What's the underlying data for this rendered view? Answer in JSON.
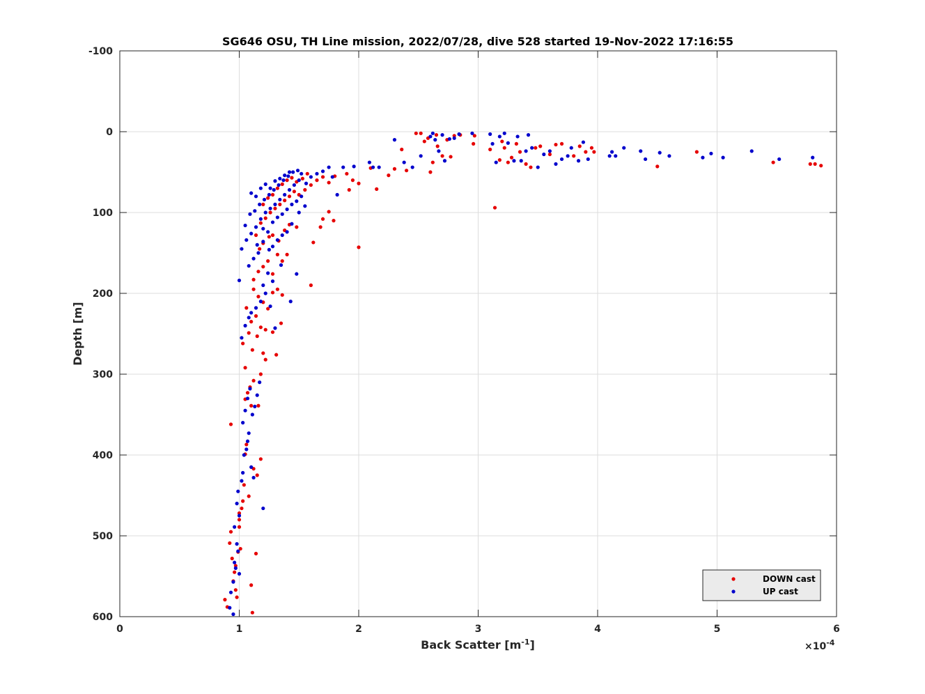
{
  "chart_data": {
    "type": "scatter",
    "title": "SG646 OSU, TH Line mission, 2022/07/28, dive 528 started 19-Nov-2022 17:16:55",
    "xlabel": "Back Scatter [m",
    "xlabel_sup": "-1",
    "xlabel_end": "]",
    "ylabel": "Depth [m]",
    "x_multiplier_label": "×10",
    "x_multiplier_exp": "-4",
    "xlim": [
      0,
      6
    ],
    "ylim": [
      -100,
      600
    ],
    "y_reversed": true,
    "xticks": [
      "0",
      "1",
      "2",
      "3",
      "4",
      "5",
      "6"
    ],
    "yticks": [
      "-100",
      "0",
      "100",
      "200",
      "300",
      "400",
      "500",
      "600"
    ],
    "grid": true,
    "legend_position": "bottom-right",
    "series": [
      {
        "name": "DOWN cast",
        "color": "#e60000",
        "points": [
          [
            0.88,
            579
          ],
          [
            0.9,
            588
          ],
          [
            0.92,
            509
          ],
          [
            0.93,
            495
          ],
          [
            0.94,
            528
          ],
          [
            0.95,
            556
          ],
          [
            0.96,
            545
          ],
          [
            0.97,
            537
          ],
          [
            0.97,
            567
          ],
          [
            0.98,
            576
          ],
          [
            0.99,
            520
          ],
          [
            1.0,
            489
          ],
          [
            1.0,
            472
          ],
          [
            1.0,
            480
          ],
          [
            1.01,
            516
          ],
          [
            1.02,
            466
          ],
          [
            1.03,
            457
          ],
          [
            1.04,
            437
          ],
          [
            1.05,
            399
          ],
          [
            1.06,
            387
          ],
          [
            1.08,
            451
          ],
          [
            1.1,
            561
          ],
          [
            1.11,
            595
          ],
          [
            1.14,
            522
          ],
          [
            1.12,
            417
          ],
          [
            1.15,
            425
          ],
          [
            1.18,
            405
          ],
          [
            0.93,
            362
          ],
          [
            1.05,
            331
          ],
          [
            1.07,
            323
          ],
          [
            1.09,
            316
          ],
          [
            1.1,
            339
          ],
          [
            1.12,
            308
          ],
          [
            1.16,
            339
          ],
          [
            1.18,
            300
          ],
          [
            1.05,
            292
          ],
          [
            1.08,
            249
          ],
          [
            1.11,
            270
          ],
          [
            1.15,
            253
          ],
          [
            1.2,
            274
          ],
          [
            1.22,
            282
          ],
          [
            1.03,
            262
          ],
          [
            1.06,
            218
          ],
          [
            1.1,
            235
          ],
          [
            1.14,
            228
          ],
          [
            1.18,
            242
          ],
          [
            1.22,
            245
          ],
          [
            1.28,
            248
          ],
          [
            1.31,
            276
          ],
          [
            1.35,
            237
          ],
          [
            1.12,
            195
          ],
          [
            1.16,
            204
          ],
          [
            1.2,
            211
          ],
          [
            1.24,
            219
          ],
          [
            1.28,
            199
          ],
          [
            1.32,
            195
          ],
          [
            1.36,
            202
          ],
          [
            1.12,
            183
          ],
          [
            1.16,
            173
          ],
          [
            1.2,
            167
          ],
          [
            1.24,
            160
          ],
          [
            1.28,
            176
          ],
          [
            1.32,
            152
          ],
          [
            1.36,
            160
          ],
          [
            1.4,
            152
          ],
          [
            1.6,
            190
          ],
          [
            1.17,
            145
          ],
          [
            1.2,
            138
          ],
          [
            1.25,
            130
          ],
          [
            1.28,
            128
          ],
          [
            1.33,
            135
          ],
          [
            1.38,
            122
          ],
          [
            1.42,
            115
          ],
          [
            1.48,
            118
          ],
          [
            1.14,
            128
          ],
          [
            1.18,
            113
          ],
          [
            1.22,
            107
          ],
          [
            1.26,
            100
          ],
          [
            1.3,
            95
          ],
          [
            1.34,
            90
          ],
          [
            1.38,
            85
          ],
          [
            1.42,
            80
          ],
          [
            1.46,
            74
          ],
          [
            1.5,
            78
          ],
          [
            1.55,
            72
          ],
          [
            1.6,
            66
          ],
          [
            1.65,
            60
          ],
          [
            1.7,
            56
          ],
          [
            1.75,
            63
          ],
          [
            1.8,
            55
          ],
          [
            1.2,
            90
          ],
          [
            1.24,
            82
          ],
          [
            1.28,
            78
          ],
          [
            1.32,
            70
          ],
          [
            1.36,
            65
          ],
          [
            1.4,
            60
          ],
          [
            1.44,
            57
          ],
          [
            1.48,
            62
          ],
          [
            1.53,
            58
          ],
          [
            1.57,
            52
          ],
          [
            1.7,
            108
          ],
          [
            1.75,
            99
          ],
          [
            1.79,
            110
          ],
          [
            1.68,
            118
          ],
          [
            1.62,
            137
          ],
          [
            1.92,
            72
          ],
          [
            1.95,
            60
          ],
          [
            2.0,
            64
          ],
          [
            1.9,
            52
          ],
          [
            2.0,
            143
          ],
          [
            2.1,
            45
          ],
          [
            2.15,
            71
          ],
          [
            2.25,
            54
          ],
          [
            2.3,
            46
          ],
          [
            2.36,
            22
          ],
          [
            2.4,
            48
          ],
          [
            2.48,
            2
          ],
          [
            2.52,
            2
          ],
          [
            2.55,
            12
          ],
          [
            2.58,
            8
          ],
          [
            2.6,
            50
          ],
          [
            2.62,
            38
          ],
          [
            2.65,
            4
          ],
          [
            2.66,
            18
          ],
          [
            2.7,
            30
          ],
          [
            2.74,
            10
          ],
          [
            2.77,
            31
          ],
          [
            2.8,
            5
          ],
          [
            2.85,
            4
          ],
          [
            2.96,
            15
          ],
          [
            2.97,
            5
          ],
          [
            3.1,
            22
          ],
          [
            3.14,
            94
          ],
          [
            3.18,
            35
          ],
          [
            3.2,
            12
          ],
          [
            3.22,
            20
          ],
          [
            3.25,
            38
          ],
          [
            3.28,
            32
          ],
          [
            3.32,
            15
          ],
          [
            3.35,
            25
          ],
          [
            3.4,
            40
          ],
          [
            3.44,
            44
          ],
          [
            3.48,
            20
          ],
          [
            3.52,
            18
          ],
          [
            3.6,
            28
          ],
          [
            3.65,
            16
          ],
          [
            3.7,
            15
          ],
          [
            3.8,
            30
          ],
          [
            3.85,
            18
          ],
          [
            3.9,
            25
          ],
          [
            3.95,
            20
          ],
          [
            3.97,
            25
          ],
          [
            4.5,
            43
          ],
          [
            4.83,
            25
          ],
          [
            5.47,
            38
          ],
          [
            5.78,
            40
          ],
          [
            5.82,
            40
          ],
          [
            5.87,
            42
          ]
        ]
      },
      {
        "name": "UP cast",
        "color": "#0000cc",
        "points": [
          [
            0.92,
            589
          ],
          [
            0.95,
            597
          ],
          [
            0.93,
            570
          ],
          [
            0.95,
            557
          ],
          [
            0.96,
            533
          ],
          [
            0.97,
            540
          ],
          [
            0.98,
            510
          ],
          [
            0.99,
            519
          ],
          [
            1.0,
            547
          ],
          [
            0.96,
            489
          ],
          [
            0.98,
            460
          ],
          [
            0.99,
            445
          ],
          [
            1.0,
            475
          ],
          [
            1.02,
            432
          ],
          [
            1.03,
            422
          ],
          [
            1.04,
            400
          ],
          [
            1.06,
            393
          ],
          [
            1.07,
            383
          ],
          [
            1.08,
            373
          ],
          [
            1.1,
            415
          ],
          [
            1.12,
            428
          ],
          [
            1.2,
            466
          ],
          [
            1.03,
            360
          ],
          [
            1.05,
            345
          ],
          [
            1.07,
            330
          ],
          [
            1.09,
            318
          ],
          [
            1.11,
            350
          ],
          [
            1.13,
            340
          ],
          [
            1.15,
            326
          ],
          [
            1.17,
            310
          ],
          [
            1.02,
            255
          ],
          [
            1.05,
            240
          ],
          [
            1.08,
            230
          ],
          [
            1.1,
            224
          ],
          [
            1.14,
            218
          ],
          [
            1.18,
            210
          ],
          [
            1.22,
            200
          ],
          [
            1.26,
            216
          ],
          [
            1.3,
            243
          ],
          [
            1.0,
            184
          ],
          [
            1.08,
            166
          ],
          [
            1.12,
            157
          ],
          [
            1.16,
            150
          ],
          [
            1.2,
            190
          ],
          [
            1.24,
            175
          ],
          [
            1.28,
            185
          ],
          [
            1.35,
            165
          ],
          [
            1.43,
            210
          ],
          [
            1.48,
            176
          ],
          [
            1.02,
            145
          ],
          [
            1.06,
            134
          ],
          [
            1.1,
            126
          ],
          [
            1.14,
            118
          ],
          [
            1.18,
            108
          ],
          [
            1.22,
            100
          ],
          [
            1.26,
            95
          ],
          [
            1.3,
            90
          ],
          [
            1.34,
            84
          ],
          [
            1.38,
            78
          ],
          [
            1.42,
            72
          ],
          [
            1.46,
            66
          ],
          [
            1.5,
            60
          ],
          [
            1.05,
            116
          ],
          [
            1.09,
            102
          ],
          [
            1.13,
            98
          ],
          [
            1.17,
            90
          ],
          [
            1.21,
            84
          ],
          [
            1.25,
            78
          ],
          [
            1.29,
            72
          ],
          [
            1.33,
            66
          ],
          [
            1.37,
            60
          ],
          [
            1.41,
            55
          ],
          [
            1.45,
            50
          ],
          [
            1.49,
            48
          ],
          [
            1.52,
            52
          ],
          [
            1.56,
            64
          ],
          [
            1.1,
            76
          ],
          [
            1.14,
            80
          ],
          [
            1.18,
            70
          ],
          [
            1.22,
            65
          ],
          [
            1.26,
            70
          ],
          [
            1.3,
            61
          ],
          [
            1.34,
            58
          ],
          [
            1.38,
            54
          ],
          [
            1.42,
            50
          ],
          [
            1.15,
            140
          ],
          [
            1.2,
            136
          ],
          [
            1.25,
            146
          ],
          [
            1.28,
            142
          ],
          [
            1.32,
            134
          ],
          [
            1.36,
            128
          ],
          [
            1.4,
            124
          ],
          [
            1.44,
            114
          ],
          [
            1.5,
            100
          ],
          [
            1.55,
            92
          ],
          [
            1.2,
            120
          ],
          [
            1.24,
            124
          ],
          [
            1.28,
            112
          ],
          [
            1.32,
            106
          ],
          [
            1.36,
            102
          ],
          [
            1.4,
            96
          ],
          [
            1.44,
            90
          ],
          [
            1.48,
            86
          ],
          [
            1.52,
            80
          ],
          [
            1.6,
            56
          ],
          [
            1.65,
            52
          ],
          [
            1.7,
            49
          ],
          [
            1.75,
            44
          ],
          [
            1.78,
            56
          ],
          [
            1.82,
            78
          ],
          [
            1.87,
            44
          ],
          [
            1.96,
            43
          ],
          [
            2.09,
            38
          ],
          [
            2.12,
            44
          ],
          [
            2.17,
            44
          ],
          [
            2.3,
            10
          ],
          [
            2.38,
            38
          ],
          [
            2.45,
            44
          ],
          [
            2.52,
            30
          ],
          [
            2.6,
            6
          ],
          [
            2.62,
            2
          ],
          [
            2.64,
            10
          ],
          [
            2.67,
            24
          ],
          [
            2.7,
            4
          ],
          [
            2.72,
            36
          ],
          [
            2.76,
            9
          ],
          [
            2.8,
            8
          ],
          [
            2.84,
            3
          ],
          [
            2.95,
            2
          ],
          [
            3.1,
            3
          ],
          [
            3.12,
            15
          ],
          [
            3.15,
            38
          ],
          [
            3.18,
            6
          ],
          [
            3.22,
            2
          ],
          [
            3.25,
            14
          ],
          [
            3.3,
            36
          ],
          [
            3.33,
            6
          ],
          [
            3.36,
            36
          ],
          [
            3.4,
            24
          ],
          [
            3.42,
            4
          ],
          [
            3.45,
            20
          ],
          [
            3.5,
            44
          ],
          [
            3.55,
            28
          ],
          [
            3.6,
            24
          ],
          [
            3.65,
            40
          ],
          [
            3.7,
            34
          ],
          [
            3.75,
            30
          ],
          [
            3.78,
            20
          ],
          [
            3.84,
            36
          ],
          [
            3.88,
            13
          ],
          [
            3.92,
            34
          ],
          [
            4.1,
            30
          ],
          [
            4.12,
            25
          ],
          [
            4.15,
            30
          ],
          [
            4.22,
            20
          ],
          [
            4.36,
            24
          ],
          [
            4.4,
            34
          ],
          [
            4.52,
            26
          ],
          [
            4.6,
            30
          ],
          [
            4.88,
            32
          ],
          [
            4.95,
            27
          ],
          [
            5.05,
            32
          ],
          [
            5.29,
            24
          ],
          [
            5.52,
            34
          ],
          [
            5.8,
            32
          ]
        ]
      }
    ]
  }
}
